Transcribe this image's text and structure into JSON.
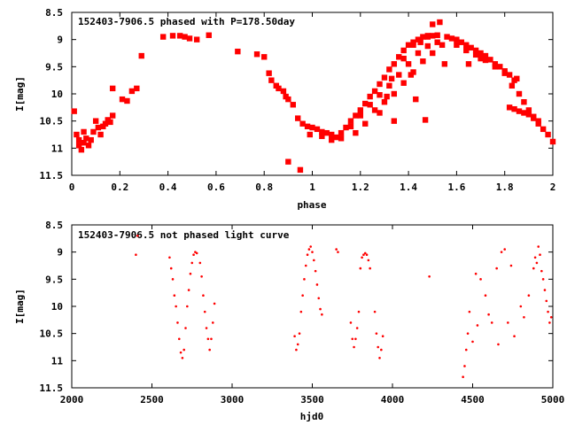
{
  "marker_color": "#ff0000",
  "chart_data": [
    {
      "type": "scatter",
      "title": "152403-7906.5 phased with P=178.50day",
      "xlabel": "phase",
      "ylabel": "I[mag]",
      "xlim": [
        0,
        2
      ],
      "ylim": [
        11.5,
        8.5
      ],
      "y_inverted": true,
      "grid": false,
      "x_ticks": [
        "0",
        "0.2",
        "0.4",
        "0.6",
        "0.8",
        "1",
        "1.2",
        "1.4",
        "1.6",
        "1.8",
        "2"
      ],
      "y_ticks": [
        "8.5",
        "9",
        "9.5",
        "10",
        "10.5",
        "11",
        "11.5"
      ],
      "series": [
        {
          "marker": "filled-square-large",
          "points": [
            [
              0.01,
              10.32
            ],
            [
              0.02,
              10.75
            ],
            [
              0.03,
              10.85
            ],
            [
              0.03,
              10.95
            ],
            [
              0.04,
              11.03
            ],
            [
              0.05,
              10.9
            ],
            [
              0.05,
              10.7
            ],
            [
              0.06,
              10.82
            ],
            [
              0.07,
              10.95
            ],
            [
              0.08,
              10.85
            ],
            [
              0.09,
              10.7
            ],
            [
              0.1,
              10.5
            ],
            [
              0.11,
              10.62
            ],
            [
              0.12,
              10.75
            ],
            [
              0.13,
              10.6
            ],
            [
              0.14,
              10.55
            ],
            [
              0.15,
              10.48
            ],
            [
              0.16,
              10.52
            ],
            [
              0.17,
              10.4
            ],
            [
              0.17,
              9.9
            ],
            [
              0.21,
              10.1
            ],
            [
              0.23,
              10.13
            ],
            [
              0.25,
              9.95
            ],
            [
              0.27,
              9.9
            ],
            [
              0.29,
              9.3
            ],
            [
              0.38,
              8.95
            ],
            [
              0.42,
              8.93
            ],
            [
              0.45,
              8.93
            ],
            [
              0.47,
              8.95
            ],
            [
              0.49,
              8.98
            ],
            [
              0.52,
              9.0
            ],
            [
              0.57,
              8.92
            ],
            [
              0.69,
              9.22
            ],
            [
              0.77,
              9.27
            ],
            [
              0.8,
              9.32
            ],
            [
              0.82,
              9.62
            ],
            [
              0.83,
              9.75
            ],
            [
              0.85,
              9.85
            ],
            [
              0.86,
              9.9
            ],
            [
              0.88,
              9.95
            ],
            [
              0.89,
              10.05
            ],
            [
              0.9,
              10.1
            ],
            [
              0.92,
              10.2
            ],
            [
              0.94,
              10.45
            ],
            [
              0.96,
              10.55
            ],
            [
              0.98,
              10.6
            ],
            [
              0.9,
              11.25
            ],
            [
              0.95,
              11.4
            ],
            [
              0.99,
              10.75
            ],
            [
              1.0,
              10.62
            ],
            [
              1.02,
              10.65
            ],
            [
              1.04,
              10.7
            ],
            [
              1.06,
              10.72
            ],
            [
              1.08,
              10.75
            ],
            [
              1.1,
              10.8
            ],
            [
              1.12,
              10.72
            ],
            [
              1.14,
              10.62
            ],
            [
              1.16,
              10.5
            ],
            [
              1.18,
              10.4
            ],
            [
              1.2,
              10.3
            ],
            [
              1.22,
              10.18
            ],
            [
              1.24,
              10.05
            ],
            [
              1.26,
              9.95
            ],
            [
              1.28,
              9.82
            ],
            [
              1.3,
              9.7
            ],
            [
              1.32,
              9.55
            ],
            [
              1.34,
              9.45
            ],
            [
              1.36,
              9.32
            ],
            [
              1.38,
              9.2
            ],
            [
              1.4,
              9.1
            ],
            [
              1.42,
              9.05
            ],
            [
              1.44,
              9.0
            ],
            [
              1.46,
              8.95
            ],
            [
              1.48,
              8.93
            ],
            [
              1.5,
              8.93
            ],
            [
              1.52,
              8.92
            ],
            [
              1.04,
              10.78
            ],
            [
              1.08,
              10.85
            ],
            [
              1.12,
              10.82
            ],
            [
              1.16,
              10.6
            ],
            [
              1.2,
              10.4
            ],
            [
              1.24,
              10.2
            ],
            [
              1.28,
              10.02
            ],
            [
              1.32,
              9.85
            ],
            [
              1.36,
              9.65
            ],
            [
              1.4,
              9.45
            ],
            [
              1.44,
              9.25
            ],
            [
              1.48,
              9.12
            ],
            [
              1.52,
              9.05
            ],
            [
              1.18,
              10.72
            ],
            [
              1.22,
              10.55
            ],
            [
              1.26,
              10.3
            ],
            [
              1.3,
              10.15
            ],
            [
              1.34,
              10.0
            ],
            [
              1.38,
              9.8
            ],
            [
              1.42,
              9.6
            ],
            [
              1.46,
              9.4
            ],
            [
              1.5,
              9.25
            ],
            [
              1.54,
              9.1
            ],
            [
              1.28,
              10.35
            ],
            [
              1.33,
              9.72
            ],
            [
              1.38,
              9.35
            ],
            [
              1.42,
              9.1
            ],
            [
              1.45,
              9.05
            ],
            [
              1.48,
              8.95
            ],
            [
              1.5,
              8.72
            ],
            [
              1.53,
              8.68
            ],
            [
              1.41,
              9.65
            ],
            [
              1.31,
              10.05
            ],
            [
              1.34,
              10.5
            ],
            [
              1.43,
              10.1
            ],
            [
              1.47,
              10.48
            ],
            [
              1.55,
              9.45
            ],
            [
              1.56,
              8.95
            ],
            [
              1.58,
              8.98
            ],
            [
              1.6,
              9.0
            ],
            [
              1.62,
              9.05
            ],
            [
              1.64,
              9.1
            ],
            [
              1.66,
              9.15
            ],
            [
              1.68,
              9.2
            ],
            [
              1.7,
              9.25
            ],
            [
              1.72,
              9.3
            ],
            [
              1.74,
              9.37
            ],
            [
              1.76,
              9.45
            ],
            [
              1.78,
              9.5
            ],
            [
              1.8,
              9.58
            ],
            [
              1.82,
              9.65
            ],
            [
              1.6,
              9.1
            ],
            [
              1.64,
              9.2
            ],
            [
              1.68,
              9.28
            ],
            [
              1.72,
              9.38
            ],
            [
              1.76,
              9.5
            ],
            [
              1.8,
              9.62
            ],
            [
              1.84,
              9.75
            ],
            [
              1.86,
              10.0
            ],
            [
              1.88,
              10.15
            ],
            [
              1.9,
              10.3
            ],
            [
              1.92,
              10.45
            ],
            [
              1.94,
              10.55
            ],
            [
              1.96,
              10.65
            ],
            [
              1.98,
              10.75
            ],
            [
              2.0,
              10.88
            ],
            [
              1.82,
              10.25
            ],
            [
              1.84,
              10.28
            ],
            [
              1.86,
              10.32
            ],
            [
              1.88,
              10.35
            ],
            [
              1.9,
              10.38
            ],
            [
              1.92,
              10.42
            ],
            [
              1.94,
              10.5
            ],
            [
              1.65,
              9.45
            ],
            [
              1.7,
              9.35
            ],
            [
              1.83,
              9.85
            ],
            [
              1.85,
              9.72
            ]
          ]
        }
      ]
    },
    {
      "type": "scatter",
      "title": "152403-7906.5 not phased light curve",
      "xlabel": "hjd0",
      "ylabel": "I[mag]",
      "xlim": [
        2000,
        5000
      ],
      "ylim": [
        11.5,
        8.5
      ],
      "y_inverted": true,
      "grid": false,
      "x_ticks": [
        "2000",
        "2500",
        "3000",
        "3500",
        "4000",
        "4500",
        "5000"
      ],
      "y_ticks": [
        "8.5",
        "9",
        "9.5",
        "10",
        "10.5",
        "11",
        "11.5"
      ],
      "series": [
        {
          "marker": "small-dot",
          "points": [
            [
              2400,
              9.05
            ],
            [
              2410,
              8.7
            ],
            [
              2610,
              9.1
            ],
            [
              2620,
              9.3
            ],
            [
              2630,
              9.5
            ],
            [
              2640,
              9.8
            ],
            [
              2650,
              10.0
            ],
            [
              2660,
              10.3
            ],
            [
              2670,
              10.6
            ],
            [
              2680,
              10.85
            ],
            [
              2690,
              10.95
            ],
            [
              2700,
              10.8
            ],
            [
              2710,
              10.4
            ],
            [
              2720,
              10.0
            ],
            [
              2730,
              9.7
            ],
            [
              2740,
              9.4
            ],
            [
              2750,
              9.2
            ],
            [
              2760,
              9.05
            ],
            [
              2770,
              9.0
            ],
            [
              2780,
              9.02
            ],
            [
              2800,
              9.2
            ],
            [
              2810,
              9.45
            ],
            [
              2820,
              9.8
            ],
            [
              2830,
              10.1
            ],
            [
              2840,
              10.4
            ],
            [
              2850,
              10.6
            ],
            [
              2860,
              10.8
            ],
            [
              2870,
              10.6
            ],
            [
              2880,
              10.3
            ],
            [
              2890,
              9.95
            ],
            [
              3390,
              10.55
            ],
            [
              3400,
              10.8
            ],
            [
              3410,
              10.7
            ],
            [
              3420,
              10.5
            ],
            [
              3430,
              10.1
            ],
            [
              3440,
              9.8
            ],
            [
              3450,
              9.5
            ],
            [
              3460,
              9.25
            ],
            [
              3470,
              9.05
            ],
            [
              3480,
              8.95
            ],
            [
              3490,
              8.9
            ],
            [
              3500,
              9.0
            ],
            [
              3510,
              9.15
            ],
            [
              3520,
              9.35
            ],
            [
              3530,
              9.6
            ],
            [
              3540,
              9.85
            ],
            [
              3550,
              10.05
            ],
            [
              3560,
              10.15
            ],
            [
              3650,
              8.95
            ],
            [
              3660,
              9.0
            ],
            [
              3740,
              10.3
            ],
            [
              3750,
              10.6
            ],
            [
              3760,
              10.75
            ],
            [
              3770,
              10.6
            ],
            [
              3780,
              10.4
            ],
            [
              3790,
              10.1
            ],
            [
              3800,
              9.3
            ],
            [
              3810,
              9.1
            ],
            [
              3820,
              9.05
            ],
            [
              3830,
              9.02
            ],
            [
              3840,
              9.05
            ],
            [
              3850,
              9.15
            ],
            [
              3860,
              9.3
            ],
            [
              3890,
              10.1
            ],
            [
              3900,
              10.5
            ],
            [
              3910,
              10.75
            ],
            [
              3920,
              10.95
            ],
            [
              3930,
              10.8
            ],
            [
              3940,
              10.55
            ],
            [
              4230,
              9.45
            ],
            [
              4440,
              11.3
            ],
            [
              4450,
              11.1
            ],
            [
              4460,
              10.8
            ],
            [
              4470,
              10.5
            ],
            [
              4480,
              10.1
            ],
            [
              4500,
              10.65
            ],
            [
              4520,
              9.4
            ],
            [
              4530,
              10.35
            ],
            [
              4550,
              9.5
            ],
            [
              4580,
              9.8
            ],
            [
              4600,
              10.15
            ],
            [
              4620,
              10.3
            ],
            [
              4650,
              9.3
            ],
            [
              4660,
              10.7
            ],
            [
              4680,
              9.0
            ],
            [
              4700,
              8.95
            ],
            [
              4720,
              10.3
            ],
            [
              4740,
              9.25
            ],
            [
              4760,
              10.55
            ],
            [
              4800,
              10.0
            ],
            [
              4820,
              10.2
            ],
            [
              4850,
              9.8
            ],
            [
              4880,
              9.3
            ],
            [
              4890,
              9.1
            ],
            [
              4900,
              9.2
            ],
            [
              4910,
              8.9
            ],
            [
              4920,
              9.05
            ],
            [
              4930,
              9.35
            ],
            [
              4940,
              9.5
            ],
            [
              4950,
              9.7
            ],
            [
              4960,
              9.9
            ],
            [
              4970,
              10.1
            ],
            [
              4980,
              10.3
            ],
            [
              4990,
              10.2
            ]
          ]
        }
      ]
    }
  ]
}
